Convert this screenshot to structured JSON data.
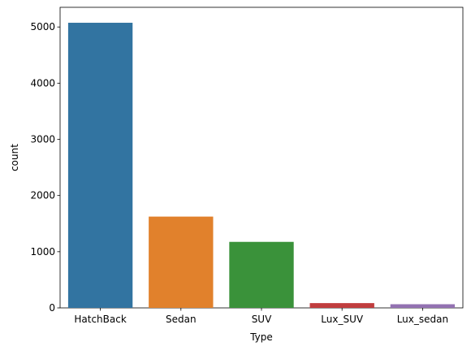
{
  "chart_data": {
    "type": "bar",
    "title": "",
    "xlabel": "Type",
    "ylabel": "count",
    "categories": [
      "HatchBack",
      "Sedan",
      "SUV",
      "Lux_SUV",
      "Lux_sedan"
    ],
    "values": [
      5075,
      1625,
      1175,
      85,
      65
    ],
    "colors": [
      "#3274a1",
      "#e1812c",
      "#3a923a",
      "#c03d3e",
      "#9372b2"
    ],
    "ylim": [
      0,
      5350
    ],
    "yticks": [
      0,
      1000,
      2000,
      3000,
      4000,
      5000
    ],
    "grid": false,
    "legend": "none"
  }
}
